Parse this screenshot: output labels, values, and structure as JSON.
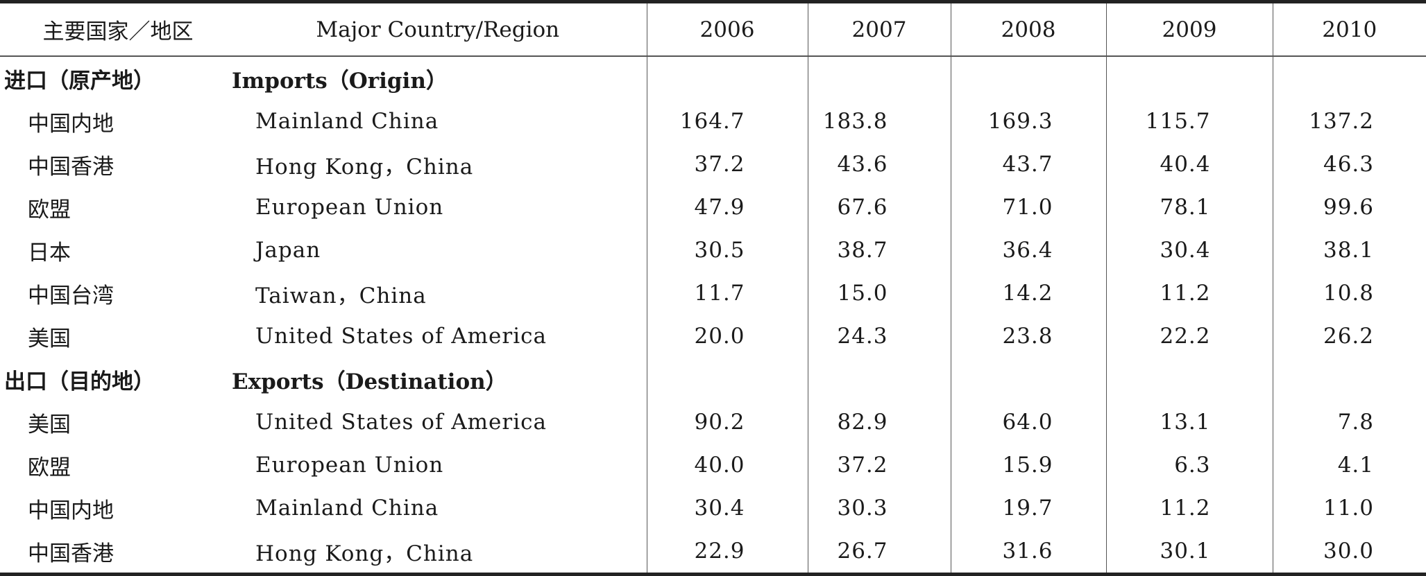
{
  "header": {
    "cn": "主要国家／地区",
    "en": "Major Country/Region",
    "years": [
      "2006",
      "2007",
      "2008",
      "2009",
      "2010"
    ]
  },
  "sections": [
    {
      "cn": "进口（原产地）",
      "en": "Imports（Origin）",
      "rows": [
        {
          "cn": "中国内地",
          "en": "Mainland China",
          "values": [
            "164.7",
            "183.8",
            "169.3",
            "115.7",
            "137.2"
          ]
        },
        {
          "cn": "中国香港",
          "en": "Hong Kong，China",
          "values": [
            "37.2",
            "43.6",
            "43.7",
            "40.4",
            "46.3"
          ]
        },
        {
          "cn": "欧盟",
          "en": "European Union",
          "values": [
            "47.9",
            "67.6",
            "71.0",
            "78.1",
            "99.6"
          ]
        },
        {
          "cn": "日本",
          "en": "Japan",
          "values": [
            "30.5",
            "38.7",
            "36.4",
            "30.4",
            "38.1"
          ]
        },
        {
          "cn": "中国台湾",
          "en": "Taiwan，China",
          "values": [
            "11.7",
            "15.0",
            "14.2",
            "11.2",
            "10.8"
          ]
        },
        {
          "cn": "美国",
          "en": "United States of America",
          "values": [
            "20.0",
            "24.3",
            "23.8",
            "22.2",
            "26.2"
          ]
        }
      ]
    },
    {
      "cn": "出口（目的地）",
      "en": "Exports（Destination）",
      "rows": [
        {
          "cn": "美国",
          "en": "United States of America",
          "values": [
            "90.2",
            "82.9",
            "64.0",
            "13.1",
            "7.8"
          ]
        },
        {
          "cn": "欧盟",
          "en": "European Union",
          "values": [
            "40.0",
            "37.2",
            "15.9",
            "6.3",
            "4.1"
          ]
        },
        {
          "cn": "中国内地",
          "en": "Mainland China",
          "values": [
            "30.4",
            "30.3",
            "19.7",
            "11.2",
            "11.0"
          ]
        },
        {
          "cn": "中国香港",
          "en": "Hong Kong，China",
          "values": [
            "22.9",
            "26.7",
            "31.6",
            "30.1",
            "30.0"
          ]
        }
      ]
    }
  ]
}
